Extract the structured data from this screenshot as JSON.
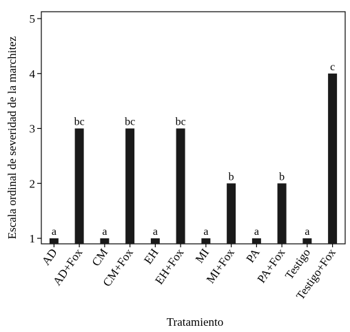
{
  "chart_data": {
    "type": "bar",
    "title": "",
    "xlabel": "Tratamiento",
    "ylabel": "Escala ordinal de severidad de la marchitez",
    "ylim": [
      1,
      5
    ],
    "yticks": [
      1,
      2,
      3,
      4,
      5
    ],
    "grid": false,
    "categories": [
      "AD",
      "AD+Fox",
      "CM",
      "CM+Fox",
      "EH",
      "EH+Fox",
      "MI",
      "MI+Fox",
      "PA",
      "PA+Fox",
      "Testigo",
      "Testigo+Fox"
    ],
    "values": [
      1,
      3,
      1,
      3,
      1,
      3,
      1,
      2,
      1,
      2,
      1,
      4
    ],
    "significance_letters": [
      "a",
      "bc",
      "a",
      "bc",
      "a",
      "bc",
      "a",
      "b",
      "a",
      "b",
      "a",
      "c"
    ],
    "bar_color": "#1a1a1a"
  }
}
